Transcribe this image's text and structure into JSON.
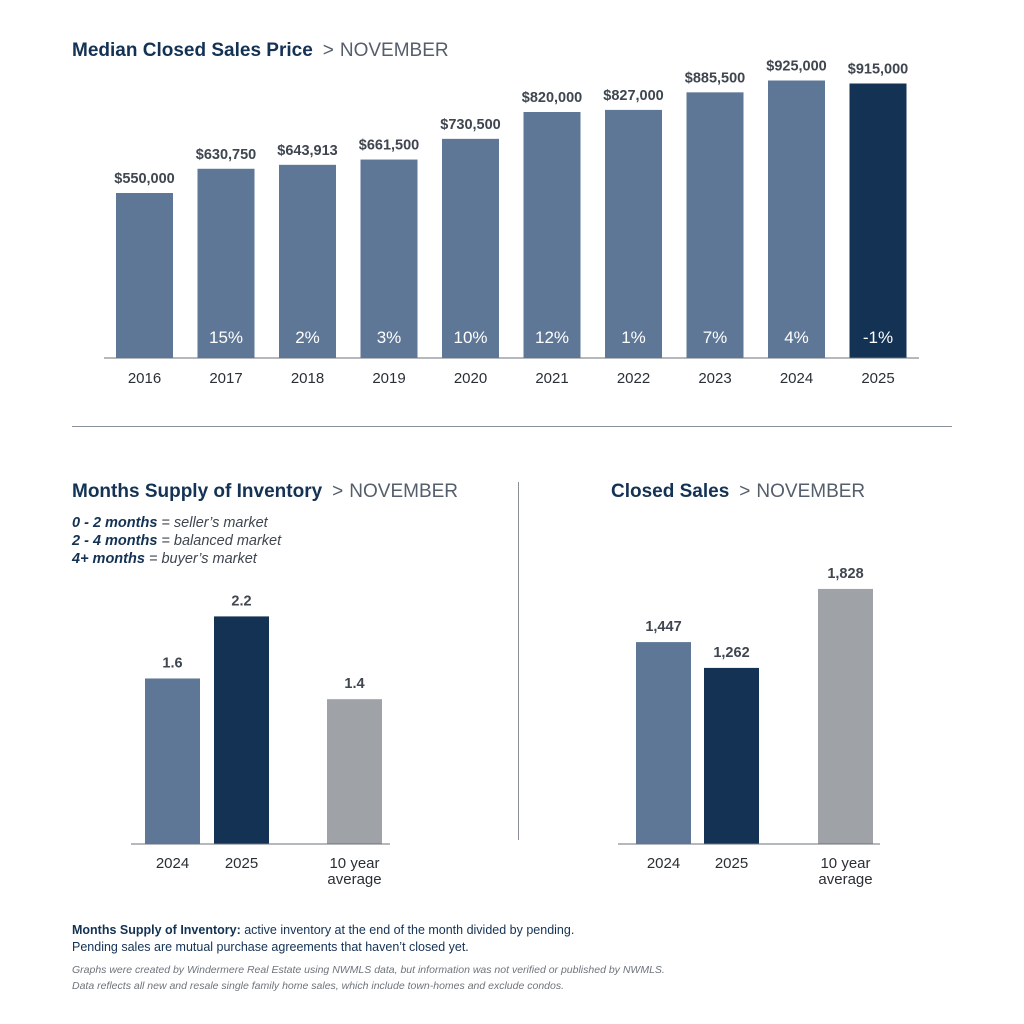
{
  "charts": {
    "median": {
      "title": "Median Closed Sales Price",
      "subtitle": "NOVEMBER",
      "separator": ">"
    },
    "months": {
      "title": "Months Supply of Inventory",
      "subtitle": "NOVEMBER",
      "separator": ">",
      "legend": [
        {
          "range": "0 - 2 months",
          "text": " = seller’s market"
        },
        {
          "range": "2 - 4 months",
          "text": " = balanced market"
        },
        {
          "range": "4+ months",
          "text": " = buyer’s market"
        }
      ]
    },
    "closed": {
      "title": "Closed Sales",
      "subtitle": "NOVEMBER",
      "separator": ">"
    }
  },
  "footnote": {
    "term": "Months Supply of Inventory:",
    "line1": " active inventory at the end of the month divided by pending.",
    "line2": "Pending sales are mutual purchase agreements that haven’t closed yet."
  },
  "disclaimer": {
    "line1": "Graphs were created by Windermere Real Estate using NWMLS data, but information was not verified or published by NWMLS.",
    "line2": "Data reflects all new and resale single family home sales, which include town-homes and exclude condos."
  },
  "colors": {
    "past": "#5e7796",
    "current": "#133254",
    "average": "#9fa3a8"
  },
  "chart_data": [
    {
      "type": "bar",
      "title": "Median Closed Sales Price",
      "categories": [
        "2016",
        "2017",
        "2018",
        "2019",
        "2020",
        "2021",
        "2022",
        "2023",
        "2024",
        "2025"
      ],
      "values": [
        550000,
        630750,
        643913,
        661500,
        730500,
        820000,
        827000,
        885500,
        925000,
        915000
      ],
      "labels": [
        "$550,000",
        "$630,750",
        "$643,913",
        "$661,500",
        "$730,500",
        "$820,000",
        "$827,000",
        "$885,500",
        "$925,000",
        "$915,000"
      ],
      "pct_change": [
        "",
        "15%",
        "2%",
        "3%",
        "10%",
        "12%",
        "1%",
        "7%",
        "4%",
        "-1%"
      ],
      "highlight_index": 9,
      "ylim": [
        0,
        1000000
      ]
    },
    {
      "type": "bar",
      "title": "Months Supply of Inventory",
      "categories": [
        "2024",
        "2025",
        "10 year average"
      ],
      "category_lines": [
        [
          "2024"
        ],
        [
          "2025"
        ],
        [
          "10 year",
          "average"
        ]
      ],
      "values": [
        1.6,
        2.2,
        1.4
      ],
      "labels": [
        "1.6",
        "2.2",
        "1.4"
      ],
      "ylim": [
        0,
        2.9
      ]
    },
    {
      "type": "bar",
      "title": "Closed Sales",
      "categories": [
        "2024",
        "2025",
        "10 year average"
      ],
      "category_lines": [
        [
          "2024"
        ],
        [
          "2025"
        ],
        [
          "10 year",
          "average"
        ]
      ],
      "values": [
        1447,
        1262,
        1828
      ],
      "labels": [
        "1,447",
        "1,262",
        "1,828"
      ],
      "ylim": [
        0,
        2150
      ]
    }
  ]
}
